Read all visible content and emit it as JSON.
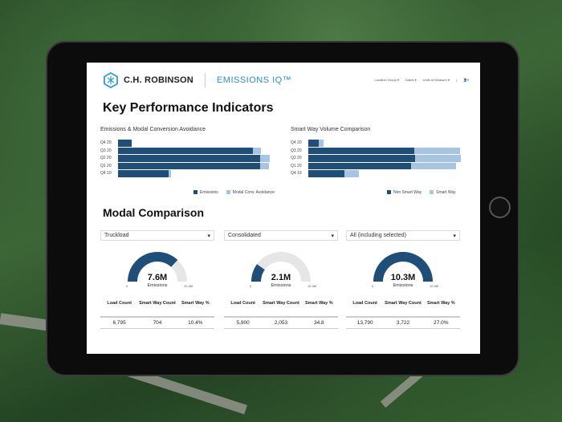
{
  "header": {
    "brand": "C.H. ROBINSON",
    "product": "EMISSIONS IQ™",
    "nav": [
      "Location Group ▾",
      "Dates ▾",
      "Units of Measure ▾",
      "|",
      "👤▾"
    ]
  },
  "kpi": {
    "title": "Key Performance Indicators",
    "charts": [
      {
        "title": "Emissions & Modal Conversion Avoidance",
        "type": "bar",
        "categories": [
          "Q4 20",
          "Q3 20",
          "Q2 20",
          "Q1 20",
          "Q4 19"
        ],
        "series": [
          {
            "name": "Emissions",
            "values": [
              17,
              168,
              177,
              177,
              63
            ]
          },
          {
            "name": "Modal Conv. Avoidance",
            "values": [
              0,
              10,
              12,
              11,
              3
            ]
          }
        ]
      },
      {
        "title": "Smart Way Volume Comparison",
        "type": "bar",
        "categories": [
          "Q4 20",
          "Q3 20",
          "Q2 20",
          "Q1 20",
          "Q4 19"
        ],
        "series": [
          {
            "name": "Non Smart Way",
            "values": [
              13,
              132,
              133,
              128,
              45
            ]
          },
          {
            "name": "Smart Way",
            "values": [
              6,
              57,
              57,
              56,
              18
            ]
          }
        ]
      }
    ],
    "colors": {
      "dark": "#1f4e79",
      "light": "#a7c5e3"
    }
  },
  "modal": {
    "title": "Modal Comparison",
    "panels": [
      {
        "select": "Truckload",
        "value": "7.6M",
        "label": "Emissions",
        "min": "0",
        "max": "10.3M",
        "fraction": 0.74,
        "headers": [
          "Load Count",
          "Smart Way Count",
          "Smart Way %"
        ],
        "row": [
          "6,795",
          "704",
          "10.4%"
        ]
      },
      {
        "select": "Consolidated",
        "value": "2.1M",
        "label": "Emissions",
        "min": "0",
        "max": "10.3M",
        "fraction": 0.2,
        "headers": [
          "Load Count",
          "Smart Way Count",
          "Smart Way %"
        ],
        "row": [
          "5,900",
          "2,053",
          "34.8"
        ]
      },
      {
        "select": "All (including selected)",
        "value": "10.3M",
        "label": "Emissions",
        "min": "0",
        "max": "10.3M",
        "fraction": 1.0,
        "headers": [
          "Load Count",
          "Smart Way Count",
          "Smart Way %"
        ],
        "row": [
          "13,790",
          "3,722",
          "27.0%"
        ]
      }
    ]
  }
}
